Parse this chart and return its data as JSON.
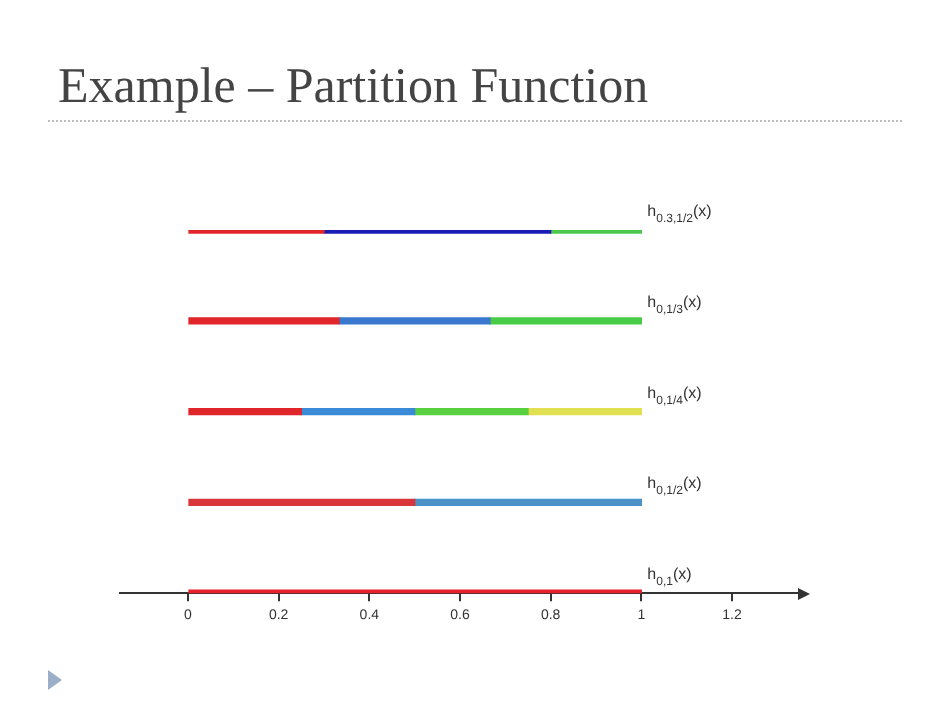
{
  "chart_data": {
    "type": "bar",
    "orientation": "horizontal",
    "stacked": true,
    "title": "Example – Partition Function",
    "categories": [
      "h$_{0.3,1/2}$(x)",
      "h$_{0,1/3}$(x)",
      "h$_{0,1/4}$(x)",
      "h$_{0,1/2}$(x)",
      "h$_{0,1}$(x)"
    ],
    "series": [
      {
        "colors": [
          "#e0262a",
          "#e0262a",
          "#e0262a",
          "#d9363a",
          "#e8202a"
        ],
        "values": [
          0.3,
          0.333,
          0.25,
          0.5,
          1
        ]
      },
      {
        "colors": [
          "#1c1cb4",
          "#3a78d0",
          "#3a8ad8",
          "#4a92c8",
          "#e8202a"
        ],
        "values": [
          0.5,
          0.333,
          0.25,
          0.5,
          null
        ]
      },
      {
        "colors": [
          "#4cc94c",
          "#48cc48",
          "#58d040",
          "#4a92c8",
          "#e8202a"
        ],
        "values": [
          0.2,
          0.334,
          0.25,
          null,
          null
        ]
      },
      {
        "colors": [
          "#4cc94c",
          "#48cc48",
          "#e0e050",
          "#4a92c8",
          "#e8202a"
        ],
        "values": [
          null,
          null,
          0.25,
          null,
          null
        ]
      }
    ],
    "xlim": [
      -0.15,
      1.35
    ],
    "xticks": [
      0,
      0.2,
      0.4,
      0.6,
      0.8,
      1,
      1.2
    ],
    "grid": false,
    "legend": false
  }
}
